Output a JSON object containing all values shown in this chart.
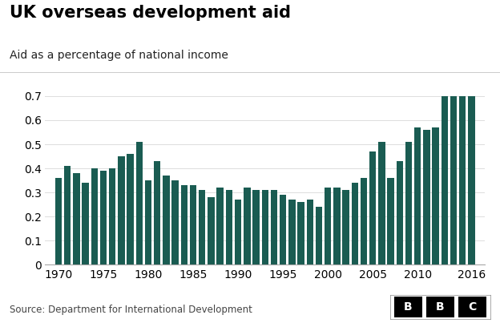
{
  "title": "UK overseas development aid",
  "subtitle": "Aid as a percentage of national income",
  "source": "Source: Department for International Development",
  "bar_color": "#1a5c52",
  "background_color": "#ffffff",
  "years": [
    1970,
    1971,
    1972,
    1973,
    1974,
    1975,
    1976,
    1977,
    1978,
    1979,
    1980,
    1981,
    1982,
    1983,
    1984,
    1985,
    1986,
    1987,
    1988,
    1989,
    1990,
    1991,
    1992,
    1993,
    1994,
    1995,
    1996,
    1997,
    1998,
    1999,
    2000,
    2001,
    2002,
    2003,
    2004,
    2005,
    2006,
    2007,
    2008,
    2009,
    2010,
    2011,
    2012,
    2013,
    2014,
    2015,
    2016
  ],
  "values": [
    0.36,
    0.41,
    0.38,
    0.34,
    0.4,
    0.39,
    0.4,
    0.45,
    0.46,
    0.51,
    0.35,
    0.43,
    0.37,
    0.35,
    0.33,
    0.33,
    0.31,
    0.28,
    0.32,
    0.31,
    0.27,
    0.32,
    0.31,
    0.31,
    0.31,
    0.29,
    0.27,
    0.26,
    0.27,
    0.24,
    0.32,
    0.32,
    0.31,
    0.34,
    0.36,
    0.47,
    0.51,
    0.36,
    0.43,
    0.51,
    0.57,
    0.56,
    0.57,
    0.7,
    0.7,
    0.7,
    0.7
  ],
  "ylim": [
    0,
    0.75
  ],
  "yticks": [
    0,
    0.1,
    0.2,
    0.3,
    0.4,
    0.5,
    0.6,
    0.7
  ],
  "xtick_years": [
    1970,
    1975,
    1980,
    1985,
    1990,
    1995,
    2000,
    2005,
    2010,
    2016
  ],
  "title_fontsize": 15,
  "subtitle_fontsize": 10,
  "axis_fontsize": 10,
  "source_fontsize": 8.5,
  "bbc_fontsize": 10
}
